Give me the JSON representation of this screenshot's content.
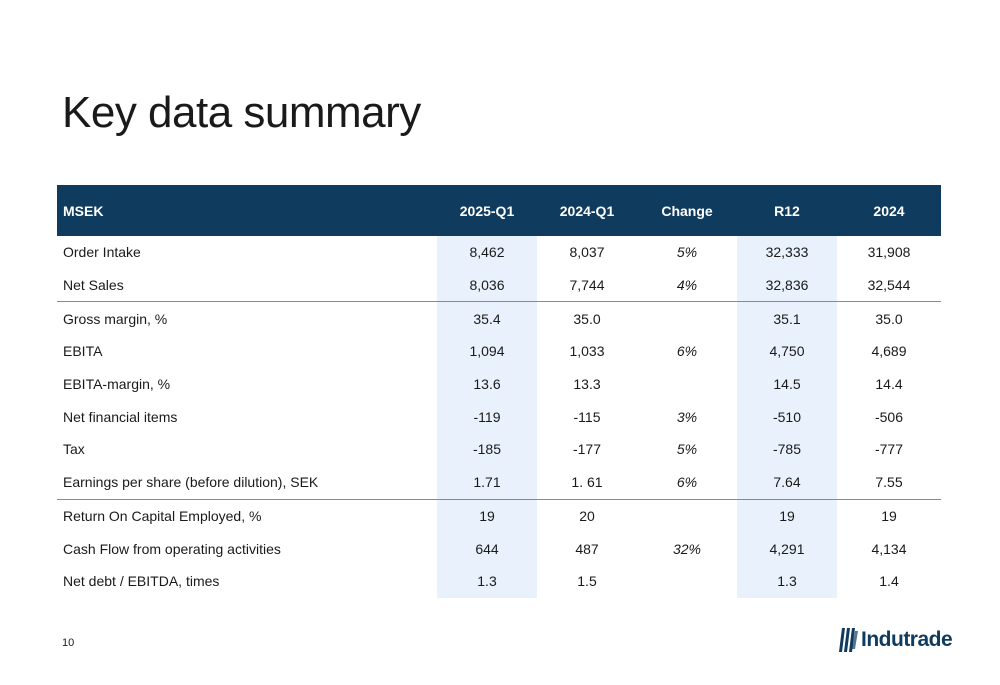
{
  "slide": {
    "title": "Key data summary",
    "page_number": "10",
    "logo_text": "Indutrade"
  },
  "table": {
    "headers": [
      "MSEK",
      "2025-Q1",
      "2024-Q1",
      "Change",
      "R12",
      "2024"
    ],
    "rows": [
      {
        "label": "Order Intake",
        "q1_2025": "8,462",
        "q1_2024": "8,037",
        "change": "5%",
        "r12": "32,333",
        "y2024": "31,908"
      },
      {
        "label": "Net Sales",
        "q1_2025": "8,036",
        "q1_2024": "7,744",
        "change": "4%",
        "r12": "32,836",
        "y2024": "32,544"
      },
      {
        "label": "Gross margin, %",
        "q1_2025": "35.4",
        "q1_2024": "35.0",
        "change": "",
        "r12": "35.1",
        "y2024": "35.0"
      },
      {
        "label": "EBITA",
        "q1_2025": "1,094",
        "q1_2024": "1,033",
        "change": "6%",
        "r12": "4,750",
        "y2024": "4,689"
      },
      {
        "label": "EBITA-margin, %",
        "q1_2025": "13.6",
        "q1_2024": "13.3",
        "change": "",
        "r12": "14.5",
        "y2024": "14.4"
      },
      {
        "label": "Net financial items",
        "q1_2025": "-119",
        "q1_2024": "-115",
        "change": "3%",
        "r12": "-510",
        "y2024": "-506"
      },
      {
        "label": "Tax",
        "q1_2025": "-185",
        "q1_2024": "-177",
        "change": "5%",
        "r12": "-785",
        "y2024": "-777"
      },
      {
        "label": "Earnings per share (before dilution), SEK",
        "q1_2025": "1.71",
        "q1_2024": "1. 61",
        "change": "6%",
        "r12": "7.64",
        "y2024": "7.55"
      },
      {
        "label": "Return On Capital Employed, %",
        "q1_2025": "19",
        "q1_2024": "20",
        "change": "",
        "r12": "19",
        "y2024": "19"
      },
      {
        "label": "Cash Flow from operating activities",
        "q1_2025": "644",
        "q1_2024": "487",
        "change": "32%",
        "r12": "4,291",
        "y2024": "4,134"
      },
      {
        "label": "Net debt / EBITDA, times",
        "q1_2025": "1.3",
        "q1_2024": "1.5",
        "change": "",
        "r12": "1.3",
        "y2024": "1.4"
      }
    ]
  },
  "colors": {
    "header_bg": "#0f3b5f",
    "highlight_col": "#e9f2fc",
    "brand": "#0f3b5f"
  }
}
